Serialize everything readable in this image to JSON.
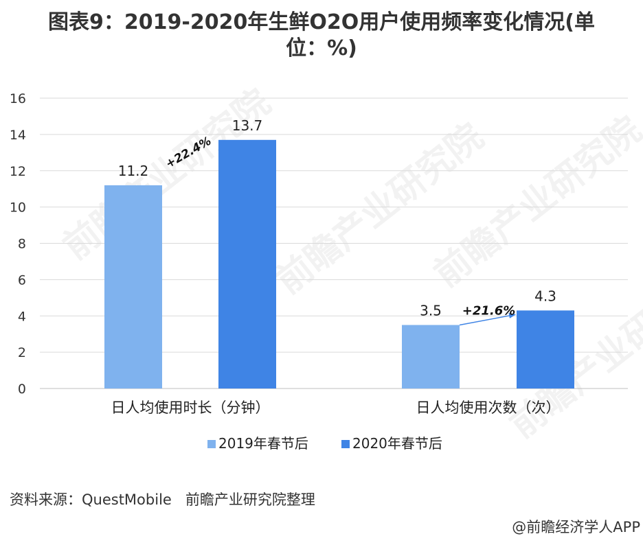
{
  "title_line1": "图表9：2019-2020年生鲜O2O用户使用频率变化情况(单",
  "title_line2": "位：%)",
  "chart_data": {
    "type": "bar",
    "categories": [
      "日人均使用时长（分钟）",
      "日人均使用次数（次）"
    ],
    "series": [
      {
        "name": "2019年春节后",
        "values": [
          11.2,
          3.5
        ],
        "color": "#7fb2ee"
      },
      {
        "name": "2020年春节后",
        "values": [
          13.7,
          4.3
        ],
        "color": "#3f84e5"
      }
    ],
    "annotations": [
      "+22.4%",
      "+21.6%"
    ],
    "ylim": [
      0,
      16
    ],
    "yticks": [
      0,
      2,
      4,
      6,
      8,
      10,
      12,
      14,
      16
    ],
    "grid": true,
    "legend": "bottom"
  },
  "watermark": "前瞻产业研究院",
  "source": "资料来源：QuestMobile   前瞻产业研究院整理",
  "credit": "@前瞻经济学人APP"
}
